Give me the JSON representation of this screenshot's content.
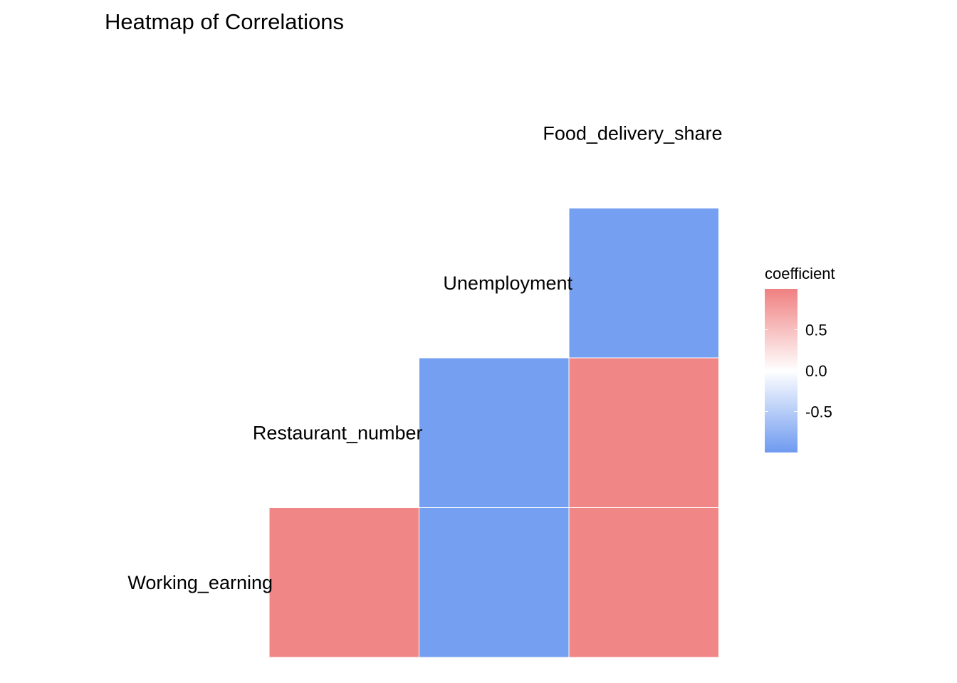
{
  "chart_data": {
    "type": "heatmap",
    "title": "Heatmap of Correlations",
    "variables": [
      "Working_earning",
      "Restaurant_number",
      "Unemployment",
      "Food_delivery_share"
    ],
    "x": [
      "Restaurant_number",
      "Unemployment",
      "Food_delivery_share"
    ],
    "y": [
      "Working_earning",
      "Restaurant_number",
      "Unemployment"
    ],
    "cells": [
      {
        "x": "Restaurant_number",
        "y": "Working_earning",
        "value": 0.95
      },
      {
        "x": "Unemployment",
        "y": "Working_earning",
        "value": -0.95
      },
      {
        "x": "Food_delivery_share",
        "y": "Working_earning",
        "value": 0.95
      },
      {
        "x": "Unemployment",
        "y": "Restaurant_number",
        "value": -0.95
      },
      {
        "x": "Food_delivery_share",
        "y": "Restaurant_number",
        "value": 0.95
      },
      {
        "x": "Food_delivery_share",
        "y": "Unemployment",
        "value": -0.95
      }
    ],
    "legend": {
      "title": "coefficient",
      "ticks": [
        0.5,
        0.0,
        -0.5
      ],
      "tick_labels": [
        "0.5",
        "0.0",
        "-0.5"
      ],
      "limits": [
        -1,
        1
      ],
      "placement": "right"
    },
    "colors": {
      "high": "#F08080",
      "mid": "#FFFFFF",
      "low": "#6E9AF0",
      "cell_border": "#FFFFFF"
    },
    "grid": false
  }
}
